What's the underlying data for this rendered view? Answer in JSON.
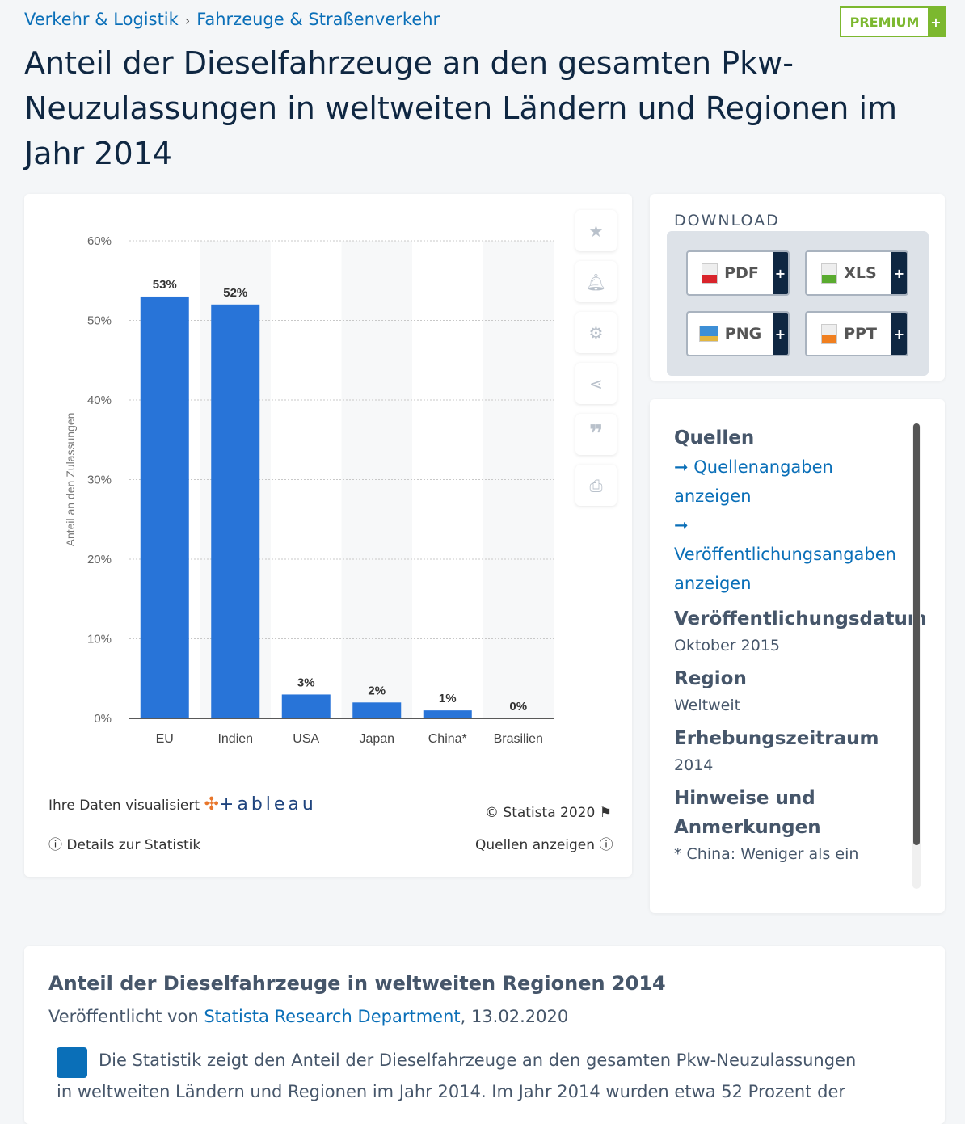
{
  "breadcrumb": {
    "items": [
      "Verkehr & Logistik",
      "Fahrzeuge & Straßenverkehr"
    ]
  },
  "premium": {
    "label": "PREMIUM",
    "plus": "+"
  },
  "title": "Anteil der Dieselfahrzeuge an den gesamten Pkw-Neuzulassungen in weltweiten Ländern und Regionen im Jahr 2014",
  "chart_data": {
    "type": "bar",
    "categories": [
      "EU",
      "Indien",
      "USA",
      "Japan",
      "China*",
      "Brasilien"
    ],
    "values": [
      53,
      52,
      3,
      2,
      1,
      0
    ],
    "data_labels": [
      "53%",
      "52%",
      "3%",
      "2%",
      "1%",
      "0%"
    ],
    "ylabel": "Anteil an den Zulassungen",
    "ylim": [
      0,
      60
    ],
    "yticks": [
      "0%",
      "10%",
      "20%",
      "30%",
      "40%",
      "50%",
      "60%"
    ],
    "grid": true,
    "bar_color": "#2874d8"
  },
  "chart_tools": [
    "star-icon",
    "bell-icon",
    "gear-icon",
    "share-icon",
    "quote-icon",
    "print-icon"
  ],
  "chart_footer": {
    "tableau_text": "Ihre Daten visualisiert",
    "tableau_logo": "+ableau",
    "copyright": "© Statista 2020",
    "details": "Details zur Statistik",
    "sources": "Quellen anzeigen"
  },
  "download": {
    "title": "DOWNLOAD",
    "buttons": [
      {
        "label": "PDF",
        "color": "#d9242b"
      },
      {
        "label": "XLS",
        "color": "#5aab2f"
      },
      {
        "label": "PNG",
        "color": "#3d8fd6"
      },
      {
        "label": "PPT",
        "color": "#f07f1f"
      }
    ],
    "plus": "+"
  },
  "sources": {
    "heading": "Quellen",
    "link1": "➞ Quellenangaben anzeigen",
    "link2": "➞ Veröffentlichungsangaben anzeigen",
    "date_label": "Veröffentlichungsdatum",
    "date": "Oktober 2015",
    "region_label": "Region",
    "region": "Weltweit",
    "period_label": "Erhebungszeitraum",
    "period": "2014",
    "notes_label": "Hinweise und Anmerkungen",
    "notes": "* China: Weniger als ein"
  },
  "description": {
    "heading": "Anteil der Dieselfahrzeuge in weltweiten Regionen 2014",
    "published_prefix": "Veröffentlicht von ",
    "publisher": "Statista Research Department",
    "published_date": ", 13.02.2020",
    "text": "Die Statistik zeigt den Anteil der Dieselfahrzeuge an den gesamten Pkw-Neuzulassungen in weltweiten Ländern und Regionen im Jahr 2014. Im Jahr 2014 wurden etwa 52 Prozent der"
  }
}
